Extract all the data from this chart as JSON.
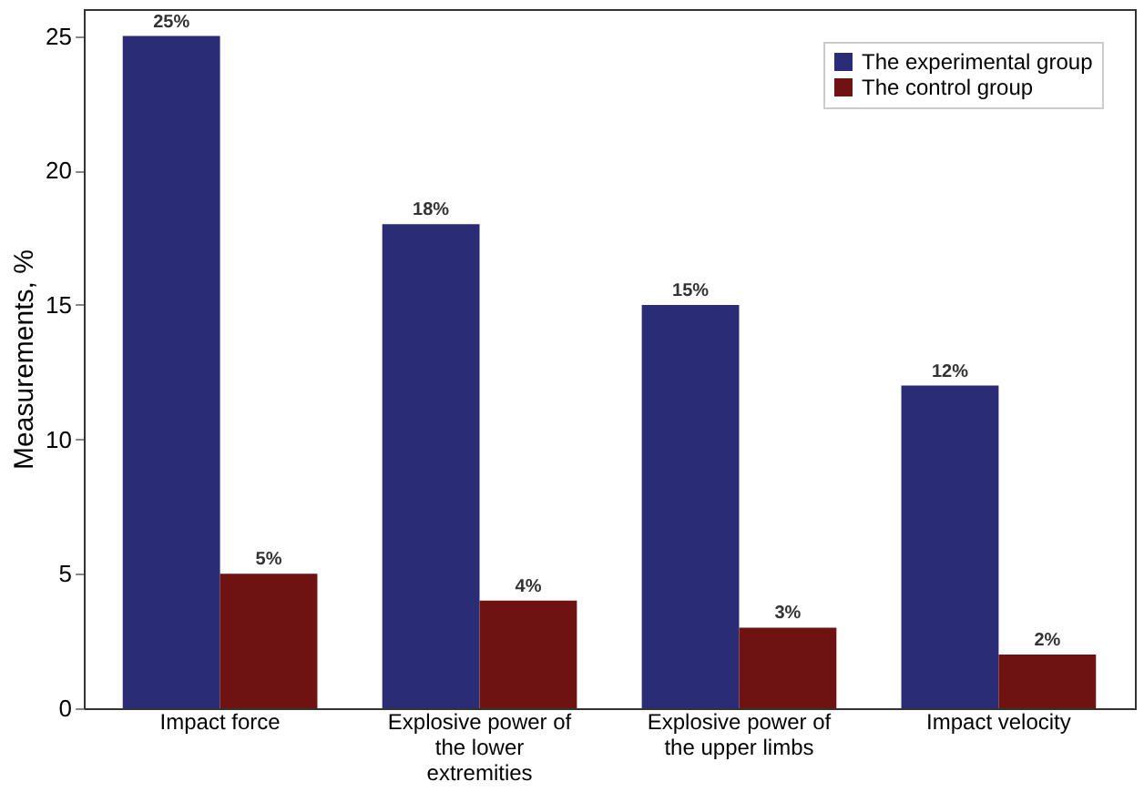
{
  "chart_data": {
    "type": "bar",
    "ylabel": "Measurements, %",
    "categories": [
      "Impact force",
      "Explosive power of the lower extremities",
      "Explosive power of the upper limbs",
      "Impact velocity"
    ],
    "series": [
      {
        "name": "The experimental group",
        "color": "#2b2c76",
        "values": [
          25,
          18,
          15,
          12
        ],
        "value_labels": [
          "25%",
          "18%",
          "15%",
          "12%"
        ]
      },
      {
        "name": "The control group",
        "color": "#6e1212",
        "values": [
          5,
          4,
          3,
          2
        ],
        "value_labels": [
          "5%",
          "4%",
          "3%",
          "2%"
        ]
      }
    ],
    "ylim": [
      0,
      26
    ],
    "yticks": [
      0,
      5,
      10,
      15,
      20,
      25
    ],
    "grid": false,
    "legend": "top right"
  }
}
